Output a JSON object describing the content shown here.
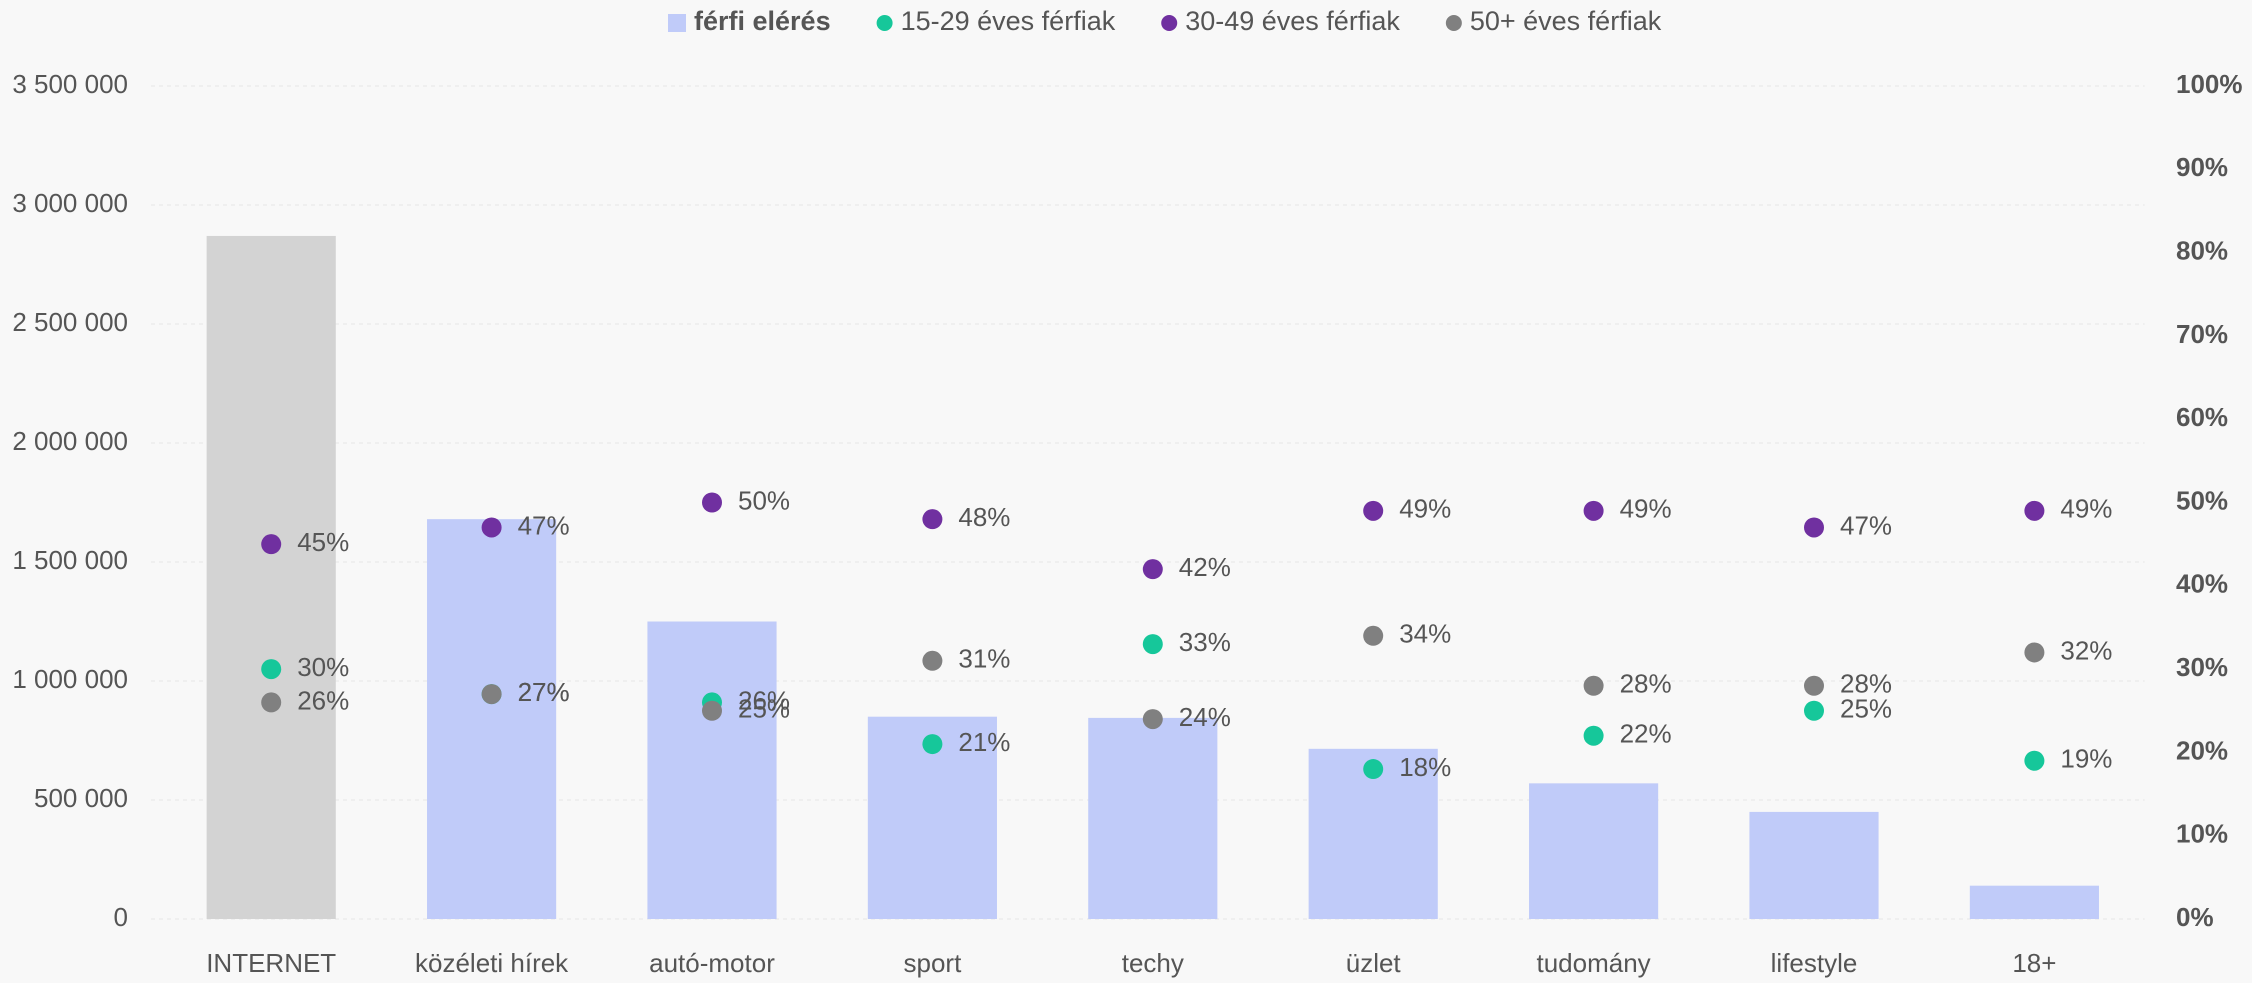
{
  "chart_data": {
    "type": "bar_dot",
    "categories": [
      "INTERNET",
      "közéleti hírek",
      "autó-motor",
      "sport",
      "techy",
      "üzlet",
      "tudomány",
      "lifestyle",
      "18+"
    ],
    "bar": {
      "name": "férfi elérés",
      "color": "#c0cbf9",
      "colors": [
        "#d3d3d3",
        "#c0cbf9",
        "#c0cbf9",
        "#c0cbf9",
        "#c0cbf9",
        "#c0cbf9",
        "#c0cbf9",
        "#c0cbf9",
        "#c0cbf9"
      ],
      "values": [
        2870000,
        1680000,
        1250000,
        850000,
        845000,
        715000,
        570000,
        450000,
        140000
      ]
    },
    "series": [
      {
        "name": "15-29 éves férfiak",
        "color": "#16c79a",
        "axis": "y2",
        "values": [
          30,
          27,
          26,
          21,
          33,
          18,
          22,
          25,
          19
        ],
        "value_labels": [
          "30%",
          "27%",
          "26%",
          "21%",
          "33%",
          "18%",
          "22%",
          "25%",
          "19%"
        ]
      },
      {
        "name": "30-49 éves férfiak",
        "color": "#7030a0",
        "axis": "y2",
        "values": [
          45,
          47,
          50,
          48,
          42,
          49,
          49,
          47,
          49
        ],
        "value_labels": [
          "45%",
          "47%",
          "50%",
          "48%",
          "42%",
          "49%",
          "49%",
          "47%",
          "49%"
        ]
      },
      {
        "name": "50+ éves férfiak",
        "color": "#808080",
        "axis": "y2",
        "values": [
          26,
          27,
          25,
          31,
          24,
          34,
          28,
          28,
          32
        ],
        "value_labels": [
          "26%",
          "27%",
          "25%",
          "31%",
          "24%",
          "34%",
          "28%",
          "28%",
          "32%"
        ]
      }
    ],
    "ylim": [
      0,
      3500000
    ],
    "yticks": [
      {
        "value": 0,
        "label": "0"
      },
      {
        "value": 500000,
        "label": "500 000"
      },
      {
        "value": 1000000,
        "label": "1 000 000"
      },
      {
        "value": 1500000,
        "label": "1 500 000"
      },
      {
        "value": 2000000,
        "label": "2 000 000"
      },
      {
        "value": 2500000,
        "label": "2 500 000"
      },
      {
        "value": 3000000,
        "label": "3 000 000"
      },
      {
        "value": 3500000,
        "label": "3 500 000"
      }
    ],
    "y2lim": [
      0,
      100
    ],
    "y2ticks": [
      {
        "value": 0,
        "label": "0%"
      },
      {
        "value": 10,
        "label": "10%"
      },
      {
        "value": 20,
        "label": "20%"
      },
      {
        "value": 30,
        "label": "30%"
      },
      {
        "value": 40,
        "label": "40%"
      },
      {
        "value": 50,
        "label": "50%"
      },
      {
        "value": 60,
        "label": "60%"
      },
      {
        "value": 70,
        "label": "70%"
      },
      {
        "value": 80,
        "label": "80%"
      },
      {
        "value": 90,
        "label": "90%"
      },
      {
        "value": 100,
        "label": "100%"
      }
    ],
    "grid": true
  }
}
